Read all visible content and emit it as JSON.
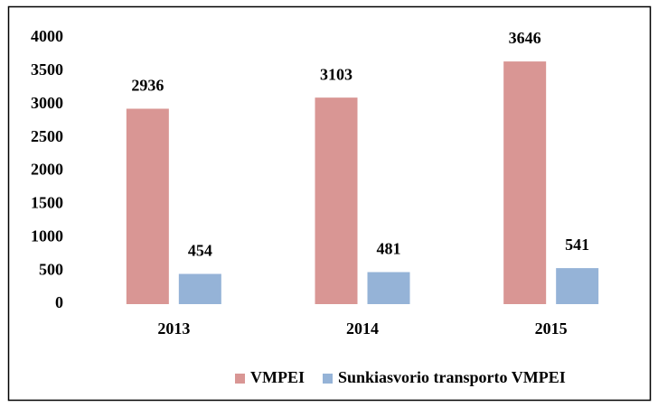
{
  "chart_data": {
    "type": "bar",
    "categories": [
      "2013",
      "2014",
      "2015"
    ],
    "series": [
      {
        "name": "VMPEI",
        "color": "#d99694",
        "values": [
          2936,
          3103,
          3646
        ]
      },
      {
        "name": "Sunkiasvorio transporto VMPEI",
        "color": "#95b3d7",
        "values": [
          454,
          481,
          541
        ]
      }
    ],
    "ylim": [
      0,
      4000
    ],
    "yticks": [
      0,
      500,
      1000,
      1500,
      2000,
      2500,
      3000,
      3500,
      4000
    ],
    "grid": false,
    "legend": "bottom"
  }
}
